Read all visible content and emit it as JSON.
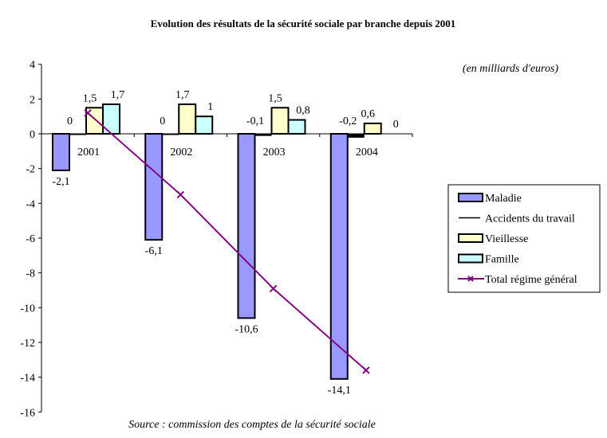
{
  "chart_data": {
    "type": "bar",
    "title": "Evolution des résultats de la sécurité sociale par branche depuis 2001",
    "unit_note": "(en milliards d'euros)",
    "source": "Source : commission des comptes de la sécurité sociale",
    "categories": [
      "2001",
      "2002",
      "2003",
      "2004"
    ],
    "ylim": [
      -16,
      4
    ],
    "yticks": [
      4,
      2,
      0,
      -2,
      -4,
      -6,
      -8,
      -10,
      -12,
      -14,
      -16
    ],
    "grid": false,
    "legend_position": "right",
    "series": [
      {
        "name": "Maladie",
        "kind": "bar",
        "color": "#9999ff",
        "values": [
          -2.1,
          -6.1,
          -10.6,
          -14.1
        ],
        "labels": [
          "-2,1",
          "-6,1",
          "-10,6",
          "-14,1"
        ]
      },
      {
        "name": "Accidents du travail",
        "kind": "bar",
        "color": "#000000",
        "values": [
          0,
          0,
          -0.1,
          -0.2
        ],
        "labels": [
          "0",
          "0",
          "-0,1",
          "-0,2"
        ]
      },
      {
        "name": "Vieillesse",
        "kind": "bar",
        "color": "#ffffcc",
        "values": [
          1.5,
          1.7,
          1.5,
          0.6
        ],
        "labels": [
          "1,5",
          "1,7",
          "1,5",
          "0,6"
        ]
      },
      {
        "name": "Famille",
        "kind": "bar",
        "color": "#ccffff",
        "values": [
          1.7,
          1,
          0.8,
          0
        ],
        "labels": [
          "1,7",
          "1",
          "0,8",
          "0"
        ]
      },
      {
        "name": "Total régime général",
        "kind": "line",
        "color": "#800080",
        "values": [
          1.2,
          -3.5,
          -8.9,
          -13.6
        ]
      }
    ]
  }
}
